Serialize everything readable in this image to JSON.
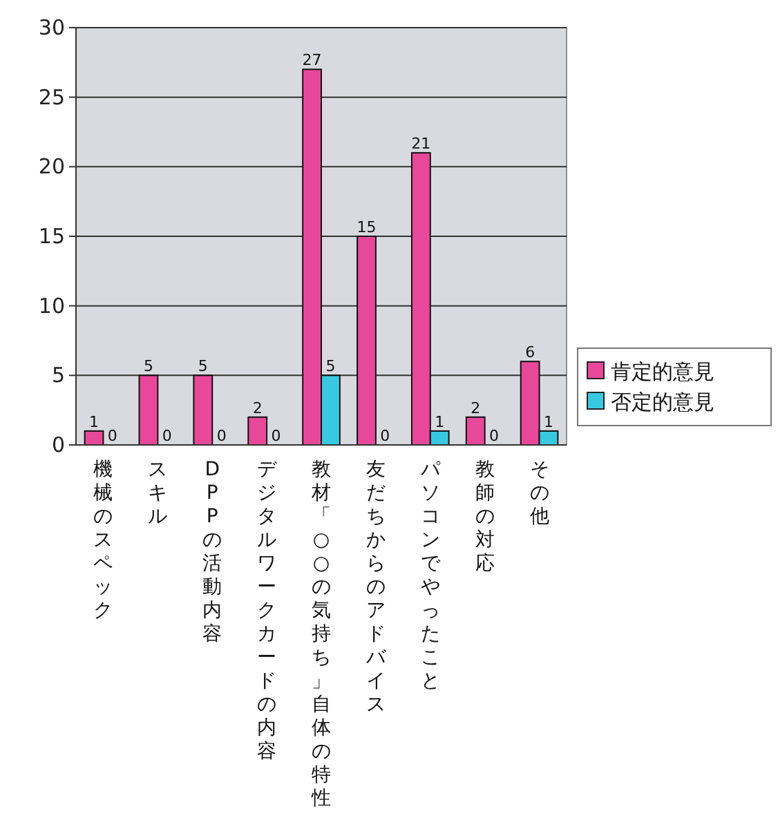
{
  "chart_data": {
    "type": "bar",
    "categories": [
      "機械のスペック",
      "スキル",
      "DPPの活動内容",
      "デジタルワークカードの内容",
      "教材「○○の気持ち」自体の特性",
      "友だちからのアドバイス",
      "パソコンでやったこと",
      "教師の対応",
      "その他"
    ],
    "series": [
      {
        "name": "肯定的意見",
        "color": "#e8489a",
        "values": [
          1,
          5,
          5,
          2,
          27,
          15,
          21,
          2,
          6
        ]
      },
      {
        "name": "否定的意見",
        "color": "#38c8e0",
        "values": [
          0,
          0,
          0,
          0,
          5,
          0,
          1,
          0,
          1
        ]
      }
    ],
    "ylim": [
      0,
      30
    ],
    "yticks": [
      0,
      5,
      10,
      15,
      20,
      25,
      30
    ],
    "grid": "y",
    "legend": "right",
    "data_labels": true
  }
}
